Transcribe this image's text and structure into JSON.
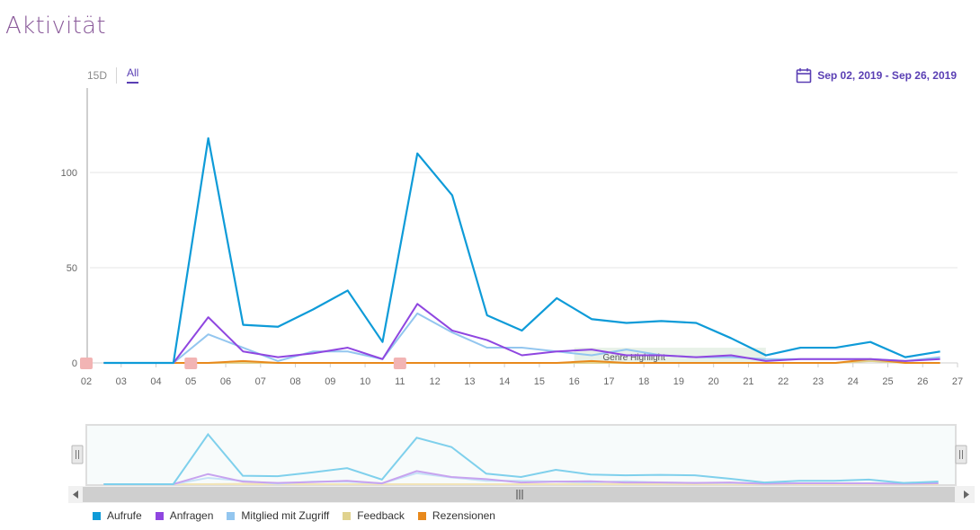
{
  "page": {
    "title": "Aktivität"
  },
  "range_tabs": [
    {
      "label": "15D",
      "active": false
    },
    {
      "label": "All",
      "active": true
    }
  ],
  "date_range": {
    "label": "Sep 02, 2019 - Sep 26, 2019",
    "icon": "calendar-icon"
  },
  "chart_data": {
    "type": "line",
    "x": [
      "02",
      "03",
      "04",
      "05",
      "06",
      "07",
      "08",
      "09",
      "10",
      "11",
      "12",
      "13",
      "14",
      "15",
      "16",
      "17",
      "18",
      "19",
      "20",
      "21",
      "22",
      "23",
      "24",
      "25",
      "26",
      "27"
    ],
    "ylim": [
      0,
      130
    ],
    "yticks": [
      0,
      50,
      100
    ],
    "grid": "horizontal",
    "legend_position": "bottom-left",
    "band": {
      "label": "Genre Highlight",
      "from": 16,
      "to": 21.5,
      "color": "#e4efe4"
    },
    "markers": [
      2,
      5,
      11
    ],
    "marker_color": "#f2b4b4",
    "series": [
      {
        "name": "Aufrufe",
        "color": "#0e9bd8",
        "x": [
          2.5,
          3.5,
          4.5,
          5.5,
          6.5,
          7.5,
          8.5,
          9.5,
          10.5,
          11.5,
          12.5,
          13.5,
          14.5,
          15.5,
          16.5,
          17.5,
          18.5,
          19.5,
          20.5,
          21.5,
          22.5,
          23.5,
          24.5,
          25.5,
          26.5
        ],
        "values": [
          0,
          0,
          0,
          118,
          20,
          19,
          28,
          38,
          11,
          110,
          88,
          25,
          17,
          34,
          23,
          21,
          22,
          21,
          13,
          4,
          8,
          8,
          11,
          3,
          6
        ]
      },
      {
        "name": "Anfragen",
        "color": "#8f46e0",
        "x": [
          2.5,
          3.5,
          4.5,
          5.5,
          6.5,
          7.5,
          8.5,
          9.5,
          10.5,
          11.5,
          12.5,
          13.5,
          14.5,
          15.5,
          16.5,
          17.5,
          18.5,
          19.5,
          20.5,
          21.5,
          22.5,
          23.5,
          24.5,
          25.5,
          26.5
        ],
        "values": [
          0,
          0,
          0,
          24,
          6,
          3,
          5,
          8,
          2,
          31,
          17,
          12,
          4,
          6,
          7,
          4,
          4,
          3,
          4,
          1,
          2,
          2,
          2,
          1,
          2
        ]
      },
      {
        "name": "Mitglied mit Zugriff",
        "color": "#93c6ef",
        "x": [
          2.5,
          3.5,
          4.5,
          5.5,
          6.5,
          7.5,
          8.5,
          9.5,
          10.5,
          11.5,
          12.5,
          13.5,
          14.5,
          15.5,
          16.5,
          17.5,
          18.5,
          19.5,
          20.5,
          21.5,
          22.5,
          23.5,
          24.5,
          25.5,
          26.5
        ],
        "values": [
          0,
          0,
          0,
          15,
          8,
          1,
          6,
          6,
          2,
          26,
          16,
          8,
          8,
          6,
          4,
          7,
          4,
          3,
          3,
          2,
          2,
          2,
          2,
          1,
          3
        ]
      },
      {
        "name": "Feedback",
        "color": "#e0d28e",
        "x": [
          2.5,
          3.5,
          4.5,
          5.5,
          6.5,
          7.5,
          8.5,
          9.5,
          10.5,
          11.5,
          12.5,
          13.5,
          14.5,
          15.5,
          16.5,
          17.5,
          18.5,
          19.5,
          20.5,
          21.5,
          22.5,
          23.5,
          24.5,
          25.5,
          26.5
        ],
        "values": [
          0,
          0,
          0,
          0,
          0,
          0,
          0,
          0,
          0,
          0,
          0,
          0,
          0,
          0,
          0,
          0,
          0,
          0,
          0,
          0,
          0,
          0,
          1,
          0,
          0
        ]
      },
      {
        "name": "Rezensionen",
        "color": "#e8891c",
        "x": [
          2.5,
          3.5,
          4.5,
          5.5,
          6.5,
          7.5,
          8.5,
          9.5,
          10.5,
          11.5,
          12.5,
          13.5,
          14.5,
          15.5,
          16.5,
          17.5,
          18.5,
          19.5,
          20.5,
          21.5,
          22.5,
          23.5,
          24.5,
          25.5,
          26.5
        ],
        "values": [
          0,
          0,
          0,
          0,
          1,
          0,
          0,
          0,
          0,
          0,
          0,
          0,
          0,
          0,
          1,
          0,
          0,
          0,
          0,
          0,
          0,
          0,
          2,
          0,
          0
        ]
      }
    ]
  }
}
